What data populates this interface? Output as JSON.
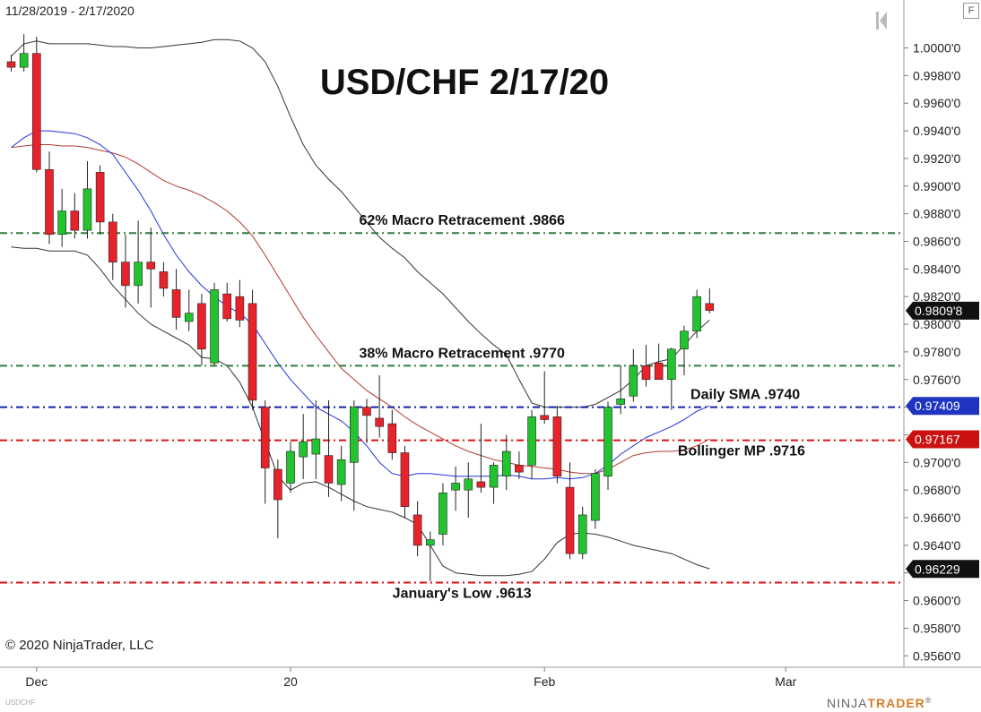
{
  "header": {
    "date_range": "11/28/2019 - 2/17/2020",
    "f_button": "F"
  },
  "footer": {
    "copyright": "© 2020 NinjaTrader, LLC",
    "logo_prefix": "NINJA",
    "logo_suffix": "TRADER",
    "logo_mark": "®",
    "symbol_tag": "USDCHF"
  },
  "colors": {
    "up": "#22c32e",
    "down": "#e8222a",
    "sma": "#2233dd",
    "ema": "#b03a2e",
    "band": "#333333",
    "green_line": "#2e7d3a",
    "red_line": "#dd1111",
    "blue_line": "#1122aa"
  },
  "chart_data": {
    "type": "candlestick",
    "title": "USD/CHF 2/17/20",
    "ylim": [
      0.9555,
      1.0012
    ],
    "x_ticks": [
      {
        "label": "Dec",
        "bar": 2
      },
      {
        "label": "20",
        "bar": 22
      },
      {
        "label": "Feb",
        "bar": 42
      },
      {
        "label": "Mar",
        "bar": 61
      }
    ],
    "y_ticks": [
      "1.0000'0",
      "0.9980'0",
      "0.9960'0",
      "0.9940'0",
      "0.9920'0",
      "0.9900'0",
      "0.9880'0",
      "0.9860'0",
      "0.9840'0",
      "0.9820'0",
      "0.9800'0",
      "0.9780'0",
      "0.9760'0",
      "0.9740'0",
      "0.9720'0",
      "0.9700'0",
      "0.9680'0",
      "0.9660'0",
      "0.9640'0",
      "0.9620'0",
      "0.9600'0",
      "0.9580'0",
      "0.9560'0"
    ],
    "y_tick_values": [
      1.0,
      0.998,
      0.996,
      0.994,
      0.992,
      0.99,
      0.988,
      0.986,
      0.984,
      0.982,
      0.98,
      0.978,
      0.976,
      0.974,
      0.972,
      0.97,
      0.968,
      0.966,
      0.964,
      0.962,
      0.96,
      0.958,
      0.956
    ],
    "price_badges": [
      {
        "value": 0.98098,
        "label": "0.9809'8",
        "color": "#111111"
      },
      {
        "value": 0.97409,
        "label": "0.97409",
        "color": "#1f35c2"
      },
      {
        "value": 0.97167,
        "label": "0.97167",
        "color": "#cc1111"
      },
      {
        "value": 0.96229,
        "label": "0.96229",
        "color": "#111111"
      }
    ],
    "levels": [
      {
        "value": 0.9866,
        "label": "62% Macro Retracement .9866",
        "color": "#2e7d3a",
        "label_bar": 35.5,
        "label_side": "above",
        "anchor": "middle"
      },
      {
        "value": 0.977,
        "label": "38% Macro Retracement .9770",
        "color": "#2e7d3a",
        "label_bar": 35.5,
        "label_side": "above",
        "anchor": "middle"
      },
      {
        "value": 0.974,
        "label": "Daily SMA .9740",
        "color": "#1122aa",
        "label_bar": 53.5,
        "label_side": "above",
        "anchor": "start"
      },
      {
        "value": 0.9716,
        "label": "Bollinger MP .9716",
        "color": "#dd1111",
        "label_bar": 52.5,
        "label_side": "below",
        "anchor": "start"
      },
      {
        "value": 0.9613,
        "label": "January's Low .9613",
        "color": "#dd1111",
        "label_bar": 35.5,
        "label_side": "below",
        "anchor": "middle"
      }
    ],
    "candles": [
      {
        "o": 0.999,
        "h": 0.9995,
        "l": 0.9983,
        "c": 0.9986
      },
      {
        "o": 0.9986,
        "h": 1.001,
        "l": 0.9983,
        "c": 0.9996
      },
      {
        "o": 0.9996,
        "h": 1.0008,
        "l": 0.991,
        "c": 0.9912
      },
      {
        "o": 0.9912,
        "h": 0.9925,
        "l": 0.9858,
        "c": 0.9865
      },
      {
        "o": 0.9865,
        "h": 0.9898,
        "l": 0.9856,
        "c": 0.9882
      },
      {
        "o": 0.9882,
        "h": 0.9895,
        "l": 0.9862,
        "c": 0.9868
      },
      {
        "o": 0.9868,
        "h": 0.9918,
        "l": 0.9862,
        "c": 0.9898
      },
      {
        "o": 0.991,
        "h": 0.9915,
        "l": 0.9865,
        "c": 0.9874
      },
      {
        "o": 0.9874,
        "h": 0.988,
        "l": 0.9832,
        "c": 0.9845
      },
      {
        "o": 0.9845,
        "h": 0.9865,
        "l": 0.9812,
        "c": 0.9828
      },
      {
        "o": 0.9828,
        "h": 0.9875,
        "l": 0.9815,
        "c": 0.9845
      },
      {
        "o": 0.9845,
        "h": 0.987,
        "l": 0.9812,
        "c": 0.984
      },
      {
        "o": 0.9838,
        "h": 0.9845,
        "l": 0.982,
        "c": 0.9826
      },
      {
        "o": 0.9825,
        "h": 0.984,
        "l": 0.9796,
        "c": 0.9805
      },
      {
        "o": 0.9802,
        "h": 0.9825,
        "l": 0.9795,
        "c": 0.9808
      },
      {
        "o": 0.9815,
        "h": 0.9822,
        "l": 0.977,
        "c": 0.9782
      },
      {
        "o": 0.9772,
        "h": 0.983,
        "l": 0.977,
        "c": 0.9825
      },
      {
        "o": 0.9822,
        "h": 0.983,
        "l": 0.9802,
        "c": 0.9804
      },
      {
        "o": 0.982,
        "h": 0.9832,
        "l": 0.9798,
        "c": 0.9803
      },
      {
        "o": 0.9815,
        "h": 0.9825,
        "l": 0.9738,
        "c": 0.9745
      },
      {
        "o": 0.974,
        "h": 0.9745,
        "l": 0.967,
        "c": 0.9696
      },
      {
        "o": 0.9695,
        "h": 0.9702,
        "l": 0.9645,
        "c": 0.9673
      },
      {
        "o": 0.9685,
        "h": 0.9715,
        "l": 0.9678,
        "c": 0.9708
      },
      {
        "o": 0.9704,
        "h": 0.9735,
        "l": 0.9688,
        "c": 0.9715
      },
      {
        "o": 0.9706,
        "h": 0.9745,
        "l": 0.9688,
        "c": 0.9717
      },
      {
        "o": 0.9705,
        "h": 0.9745,
        "l": 0.9675,
        "c": 0.9685
      },
      {
        "o": 0.9684,
        "h": 0.9712,
        "l": 0.9672,
        "c": 0.9702
      },
      {
        "o": 0.97,
        "h": 0.9745,
        "l": 0.9665,
        "c": 0.974
      },
      {
        "o": 0.974,
        "h": 0.9746,
        "l": 0.9714,
        "c": 0.9734
      },
      {
        "o": 0.9732,
        "h": 0.9763,
        "l": 0.9718,
        "c": 0.9726
      },
      {
        "o": 0.9728,
        "h": 0.9738,
        "l": 0.9702,
        "c": 0.9707
      },
      {
        "o": 0.9707,
        "h": 0.9712,
        "l": 0.966,
        "c": 0.9668
      },
      {
        "o": 0.9662,
        "h": 0.9672,
        "l": 0.9632,
        "c": 0.964
      },
      {
        "o": 0.964,
        "h": 0.965,
        "l": 0.9614,
        "c": 0.9644
      },
      {
        "o": 0.9648,
        "h": 0.9685,
        "l": 0.964,
        "c": 0.9678
      },
      {
        "o": 0.968,
        "h": 0.9697,
        "l": 0.9665,
        "c": 0.9685
      },
      {
        "o": 0.968,
        "h": 0.97,
        "l": 0.966,
        "c": 0.9688
      },
      {
        "o": 0.9686,
        "h": 0.9728,
        "l": 0.9678,
        "c": 0.9682
      },
      {
        "o": 0.9682,
        "h": 0.97,
        "l": 0.967,
        "c": 0.9698
      },
      {
        "o": 0.969,
        "h": 0.972,
        "l": 0.968,
        "c": 0.9708
      },
      {
        "o": 0.9698,
        "h": 0.9708,
        "l": 0.9688,
        "c": 0.9693
      },
      {
        "o": 0.9698,
        "h": 0.9738,
        "l": 0.9688,
        "c": 0.9733
      },
      {
        "o": 0.9734,
        "h": 0.9766,
        "l": 0.9728,
        "c": 0.9731
      },
      {
        "o": 0.9733,
        "h": 0.9741,
        "l": 0.9685,
        "c": 0.969
      },
      {
        "o": 0.9682,
        "h": 0.97,
        "l": 0.963,
        "c": 0.9634
      },
      {
        "o": 0.9634,
        "h": 0.9668,
        "l": 0.963,
        "c": 0.9662
      },
      {
        "o": 0.9658,
        "h": 0.9695,
        "l": 0.9652,
        "c": 0.9692
      },
      {
        "o": 0.969,
        "h": 0.9744,
        "l": 0.968,
        "c": 0.974
      },
      {
        "o": 0.9742,
        "h": 0.977,
        "l": 0.9735,
        "c": 0.9746
      },
      {
        "o": 0.9748,
        "h": 0.9782,
        "l": 0.9744,
        "c": 0.977
      },
      {
        "o": 0.977,
        "h": 0.9785,
        "l": 0.9755,
        "c": 0.976
      },
      {
        "o": 0.9772,
        "h": 0.9786,
        "l": 0.976,
        "c": 0.976
      },
      {
        "o": 0.976,
        "h": 0.9783,
        "l": 0.9738,
        "c": 0.9782
      },
      {
        "o": 0.9782,
        "h": 0.9799,
        "l": 0.9763,
        "c": 0.9795
      },
      {
        "o": 0.9795,
        "h": 0.9825,
        "l": 0.979,
        "c": 0.982
      },
      {
        "o": 0.9815,
        "h": 0.9826,
        "l": 0.9808,
        "c": 0.981
      }
    ],
    "bollinger_upper": [
      0.9994,
      1.0003,
      1.0005,
      1.0003,
      1.0003,
      1.0003,
      1.0003,
      1.0002,
      1.0001,
      1.0001,
      1.0,
      1.0,
      1.0001,
      1.0002,
      1.0003,
      1.0004,
      1.0006,
      1.0006,
      1.0005,
      1.0,
      0.999,
      0.9972,
      0.995,
      0.993,
      0.9915,
      0.9905,
      0.9896,
      0.9885,
      0.9874,
      0.9863,
      0.9855,
      0.9848,
      0.9838,
      0.983,
      0.9822,
      0.9812,
      0.9802,
      0.9793,
      0.9785,
      0.9778,
      0.976,
      0.9743,
      0.974,
      0.974,
      0.974,
      0.974,
      0.9742,
      0.9747,
      0.9752,
      0.976,
      0.977,
      0.9773,
      0.9775,
      0.9785,
      0.9795,
      0.9803
    ],
    "bollinger_lower": [
      0.9856,
      0.9855,
      0.9855,
      0.9853,
      0.9853,
      0.9853,
      0.985,
      0.984,
      0.9828,
      0.9818,
      0.9808,
      0.98,
      0.9795,
      0.979,
      0.9785,
      0.9776,
      0.9775,
      0.977,
      0.9758,
      0.974,
      0.9715,
      0.969,
      0.968,
      0.9685,
      0.9686,
      0.9682,
      0.9677,
      0.9672,
      0.9668,
      0.9666,
      0.9664,
      0.966,
      0.9655,
      0.964,
      0.9625,
      0.962,
      0.9619,
      0.9618,
      0.9618,
      0.9618,
      0.9619,
      0.9621,
      0.963,
      0.9642,
      0.9648,
      0.9649,
      0.9648,
      0.9646,
      0.9643,
      0.964,
      0.9638,
      0.9636,
      0.9634,
      0.963,
      0.9626,
      0.9623
    ],
    "sma": [
      0.9928,
      0.9935,
      0.994,
      0.994,
      0.9939,
      0.9938,
      0.9935,
      0.993,
      0.9923,
      0.991,
      0.9897,
      0.9882,
      0.9865,
      0.985,
      0.9838,
      0.9828,
      0.982,
      0.9813,
      0.9808,
      0.98,
      0.9786,
      0.9772,
      0.976,
      0.975,
      0.974,
      0.9735,
      0.973,
      0.9722,
      0.9712,
      0.97,
      0.9692,
      0.969,
      0.9692,
      0.9692,
      0.9691,
      0.969,
      0.969,
      0.969,
      0.969,
      0.9691,
      0.969,
      0.9688,
      0.9688,
      0.9689,
      0.9688,
      0.9689,
      0.9692,
      0.9698,
      0.9706,
      0.9712,
      0.9718,
      0.9722,
      0.9726,
      0.9731,
      0.9737,
      0.9741
    ],
    "ema": [
      0.9928,
      0.9929,
      0.993,
      0.993,
      0.9929,
      0.9929,
      0.9928,
      0.9926,
      0.9924,
      0.9921,
      0.9916,
      0.991,
      0.9904,
      0.99,
      0.9897,
      0.9893,
      0.9888,
      0.9882,
      0.9874,
      0.9864,
      0.985,
      0.9835,
      0.982,
      0.9805,
      0.9792,
      0.978,
      0.9768,
      0.976,
      0.9752,
      0.9746,
      0.974,
      0.9733,
      0.9727,
      0.9722,
      0.9717,
      0.9712,
      0.9708,
      0.9705,
      0.9702,
      0.97,
      0.9698,
      0.9697,
      0.9696,
      0.9695,
      0.9693,
      0.9692,
      0.9692,
      0.9695,
      0.97,
      0.9705,
      0.9707,
      0.9708,
      0.9708,
      0.9709,
      0.9712,
      0.9717
    ]
  }
}
